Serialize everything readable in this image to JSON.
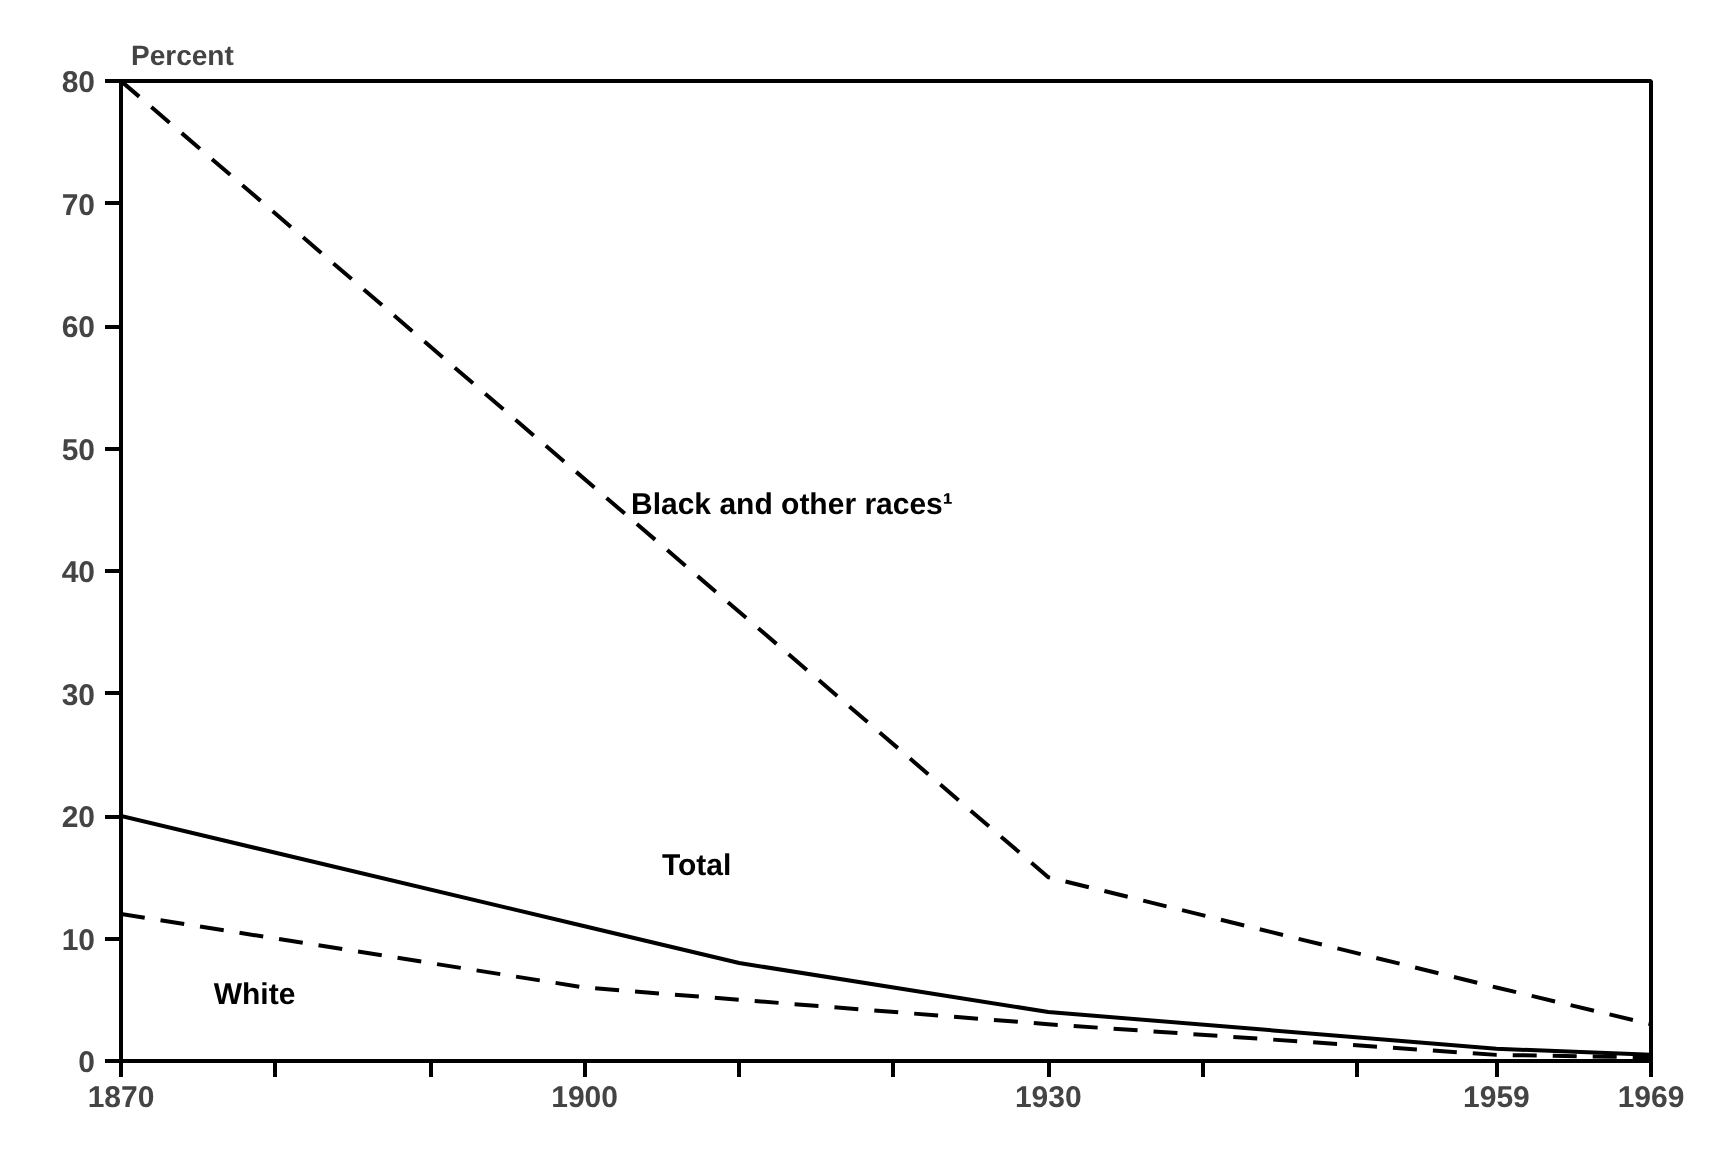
{
  "chart_data": {
    "type": "line",
    "ylabel": "Percent",
    "xlim": [
      1870,
      1969
    ],
    "ylim": [
      0,
      80
    ],
    "xticks": [
      1870,
      {
        "value": 1880,
        "label": null
      },
      {
        "value": 1890,
        "label": null
      },
      1900,
      {
        "value": 1910,
        "label": null
      },
      {
        "value": 1920,
        "label": null
      },
      1930,
      {
        "value": 1940,
        "label": null
      },
      {
        "value": 1950,
        "label": null
      },
      1959,
      1969
    ],
    "yticks": [
      0,
      10,
      20,
      30,
      40,
      50,
      60,
      70,
      80
    ],
    "grid": false,
    "legend": false,
    "marker": "none",
    "series": [
      {
        "name": "Black and other races¹",
        "color": "#000000",
        "line_style": "dashed",
        "x": [
          1870,
          1930,
          1959,
          1969
        ],
        "values": [
          80,
          15,
          6,
          3
        ]
      },
      {
        "name": "Total",
        "color": "#000000",
        "line_style": "solid",
        "x": [
          1870,
          1900,
          1910,
          1930,
          1959,
          1969
        ],
        "values": [
          20,
          11,
          8,
          4,
          1,
          0.5
        ]
      },
      {
        "name": "White",
        "color": "#000000",
        "line_style": "dashed",
        "x": [
          1870,
          1900,
          1930,
          1959,
          1969
        ],
        "values": [
          12,
          6,
          3,
          0.5,
          0.3
        ]
      }
    ]
  }
}
